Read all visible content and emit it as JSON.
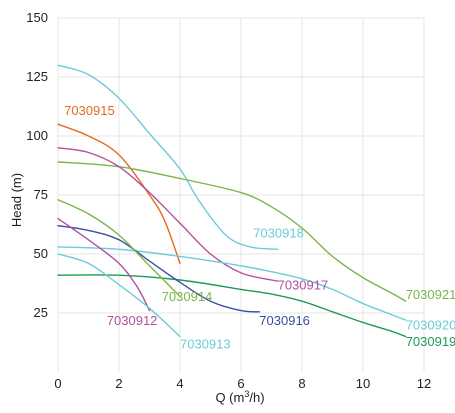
{
  "chart_data": {
    "type": "line",
    "title": "",
    "xlabel": "Q (m",
    "xlabel_sup": "3",
    "xlabel_tail": "/h)",
    "ylabel": "Head (m)",
    "xlim": [
      0,
      12
    ],
    "ylim": [
      0,
      150
    ],
    "xticks": [
      0,
      2,
      4,
      6,
      8,
      10,
      12
    ],
    "yticks": [
      25,
      50,
      75,
      100,
      125,
      150
    ],
    "grid": true,
    "legend": "inline labels",
    "series": [
      {
        "name": "7030915",
        "color": "#e46a1e",
        "points": [
          [
            0,
            105
          ],
          [
            1,
            100
          ],
          [
            2,
            92
          ],
          [
            3,
            75
          ],
          [
            3.5,
            64
          ],
          [
            4,
            46
          ]
        ],
        "label_at": [
          0.2,
          109
        ]
      },
      {
        "name": "7030918",
        "color": "#6ccbdb",
        "points": [
          [
            0,
            130
          ],
          [
            1,
            126
          ],
          [
            2,
            116
          ],
          [
            3,
            101
          ],
          [
            4,
            86
          ],
          [
            4.6,
            73
          ],
          [
            5.5,
            58
          ],
          [
            6.3,
            53
          ],
          [
            7.2,
            52
          ]
        ],
        "label_at": [
          6.4,
          57
        ]
      },
      {
        "name": "7030921",
        "color": "#7ab648",
        "points": [
          [
            0,
            89
          ],
          [
            2,
            87
          ],
          [
            4,
            82
          ],
          [
            6,
            76
          ],
          [
            7,
            70
          ],
          [
            8,
            61
          ],
          [
            9,
            49
          ],
          [
            10,
            40
          ],
          [
            11,
            33
          ],
          [
            11.4,
            30
          ]
        ],
        "label_at": [
          11.4,
          31
        ]
      },
      {
        "name": "7030917",
        "color": "#b050a0",
        "points": [
          [
            0,
            95
          ],
          [
            1,
            93
          ],
          [
            2,
            87
          ],
          [
            3,
            76
          ],
          [
            4,
            63
          ],
          [
            5,
            50
          ],
          [
            6,
            42
          ],
          [
            7,
            39
          ],
          [
            7.2,
            38.5
          ]
        ],
        "label_at": [
          7.2,
          35
        ]
      },
      {
        "name": "7030920",
        "color": "#6ccbdb",
        "points": [
          [
            0,
            53
          ],
          [
            2,
            52
          ],
          [
            4,
            49
          ],
          [
            6,
            45
          ],
          [
            7,
            42.5
          ],
          [
            8,
            39.5
          ],
          [
            9,
            35
          ],
          [
            10,
            29
          ],
          [
            11,
            24
          ],
          [
            11.4,
            22
          ]
        ],
        "label_at": [
          11.4,
          18
        ]
      },
      {
        "name": "7030919",
        "color": "#1e9a56",
        "points": [
          [
            0,
            41
          ],
          [
            2,
            41
          ],
          [
            4,
            39
          ],
          [
            6,
            35
          ],
          [
            7,
            33
          ],
          [
            8,
            30
          ],
          [
            9,
            25.5
          ],
          [
            10,
            21
          ],
          [
            11,
            17
          ],
          [
            11.4,
            15
          ]
        ],
        "label_at": [
          11.4,
          11
        ]
      },
      {
        "name": "7030916",
        "color": "#3a4fa0",
        "points": [
          [
            0,
            62
          ],
          [
            1,
            60
          ],
          [
            2,
            56
          ],
          [
            3,
            47
          ],
          [
            4,
            38
          ],
          [
            5,
            30
          ],
          [
            6,
            26
          ],
          [
            6.6,
            25.5
          ]
        ],
        "label_at": [
          6.6,
          20
        ]
      },
      {
        "name": "7030914",
        "color": "#7ab648",
        "points": [
          [
            0,
            73
          ],
          [
            1,
            67
          ],
          [
            2,
            58
          ],
          [
            3,
            45
          ],
          [
            4,
            32
          ]
        ],
        "label_at": [
          3.4,
          30
        ]
      },
      {
        "name": "7030912",
        "color": "#b050a0",
        "points": [
          [
            0,
            65
          ],
          [
            1,
            56
          ],
          [
            2,
            46
          ],
          [
            2.6,
            36
          ],
          [
            3,
            26
          ]
        ],
        "label_at": [
          1.6,
          20
        ]
      },
      {
        "name": "7030913",
        "color": "#6ccbdb",
        "points": [
          [
            0,
            50
          ],
          [
            1,
            46
          ],
          [
            2,
            37
          ],
          [
            3,
            27
          ],
          [
            4,
            15
          ]
        ],
        "label_at": [
          4,
          10
        ]
      }
    ]
  }
}
